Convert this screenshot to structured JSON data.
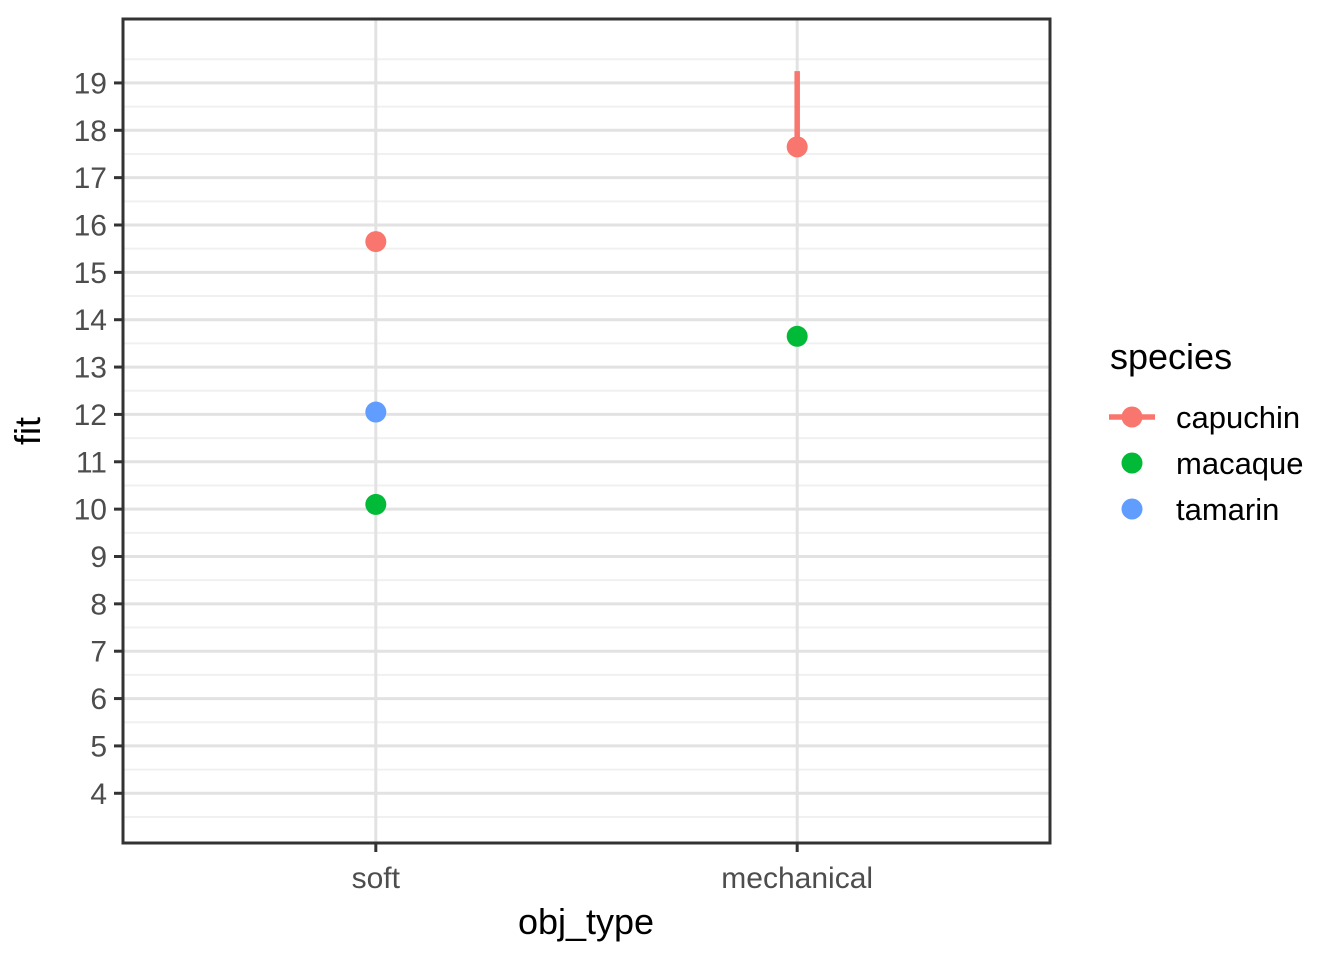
{
  "chart_data": {
    "type": "pointrange-scatter",
    "title": "",
    "xlabel": "obj_type",
    "ylabel": "fit",
    "categories": [
      "soft",
      "mechanical"
    ],
    "y_axis": {
      "ticks": [
        4,
        5,
        6,
        7,
        8,
        9,
        10,
        11,
        12,
        13,
        14,
        15,
        16,
        17,
        18,
        19
      ],
      "range": [
        2.95,
        20.35
      ],
      "minor_step": 0.5
    },
    "grid": {
      "major_on": true,
      "minor_on": true
    },
    "series": [
      {
        "name": "capuchin",
        "color": "#F8766D",
        "points": [
          {
            "x": "soft",
            "fit": 15.65
          },
          {
            "x": "mechanical",
            "fit": 17.65,
            "upper": 19.25
          }
        ]
      },
      {
        "name": "macaque",
        "color": "#00BA38",
        "points": [
          {
            "x": "soft",
            "fit": 10.1
          },
          {
            "x": "mechanical",
            "fit": 13.65
          }
        ]
      },
      {
        "name": "tamarin",
        "color": "#619CFF",
        "points": [
          {
            "x": "soft",
            "fit": 12.05
          }
        ]
      }
    ],
    "legend": {
      "title": "species",
      "position": "right",
      "entries": [
        "capuchin",
        "macaque",
        "tamarin"
      ]
    },
    "colors": {
      "panel_border": "#333333",
      "grid_major": "#e2e2e2",
      "grid_minor": "#f0f0f0",
      "tick_mark": "#333333",
      "tick_text": "#4d4d4d"
    }
  }
}
